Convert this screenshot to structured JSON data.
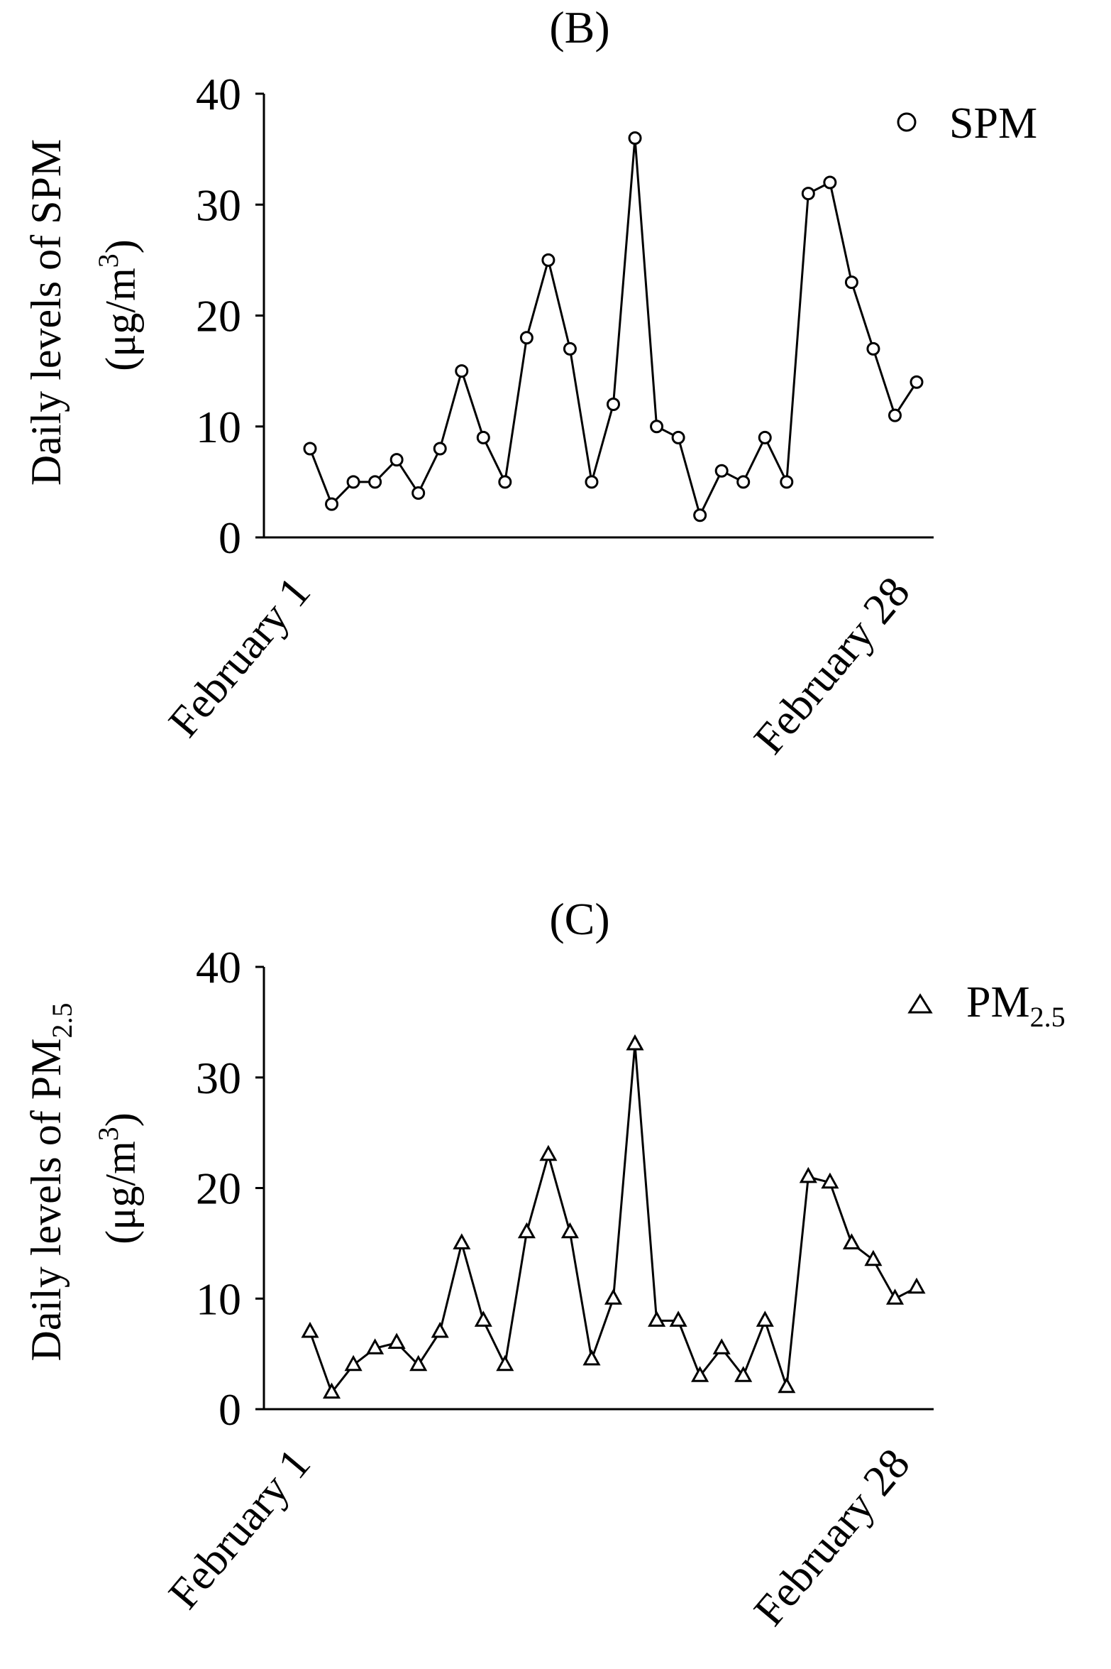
{
  "chart_data": [
    {
      "type": "line",
      "title": "(B)",
      "ylabel_line1": "Daily levels of SPM",
      "ylabel_line2_prefix": "(μg/m",
      "ylabel_line2_sup": "3",
      "ylabel_line2_suffix": ")",
      "ylim": [
        0,
        40
      ],
      "yticks": [
        "0",
        "10",
        "20",
        "30",
        "40"
      ],
      "x_start_label": "February 1",
      "x_end_label": "February 28",
      "marker": "circle",
      "legend_position": "top-right",
      "series": [
        {
          "name": "SPM",
          "legend_base": "SPM",
          "legend_sub": "",
          "values": [
            8,
            3,
            5,
            5,
            7,
            4,
            8,
            15,
            9,
            5,
            18,
            25,
            17,
            5,
            12,
            36,
            10,
            9,
            2,
            6,
            5,
            9,
            5,
            31,
            32,
            23,
            17,
            11,
            14
          ]
        }
      ]
    },
    {
      "type": "line",
      "title": "(C)",
      "ylabel_line1_base": "Daily levels of PM",
      "ylabel_line1_sub": "2.5",
      "ylabel_line2_prefix": "(μg/m",
      "ylabel_line2_sup": "3",
      "ylabel_line2_suffix": ")",
      "ylim": [
        0,
        40
      ],
      "yticks": [
        "0",
        "10",
        "20",
        "30",
        "40"
      ],
      "x_start_label": "February 1",
      "x_end_label": "February 28",
      "marker": "triangle",
      "legend_position": "top-right",
      "series": [
        {
          "name": "PM2.5",
          "legend_base": "PM",
          "legend_sub": "2.5",
          "values": [
            7,
            1.5,
            4,
            5.5,
            6,
            4,
            7,
            15,
            8,
            4,
            16,
            23,
            16,
            4.5,
            10,
            33,
            8,
            8,
            3,
            5.5,
            3,
            8,
            2,
            21,
            20.5,
            15,
            13.5,
            10,
            11
          ]
        }
      ]
    }
  ]
}
